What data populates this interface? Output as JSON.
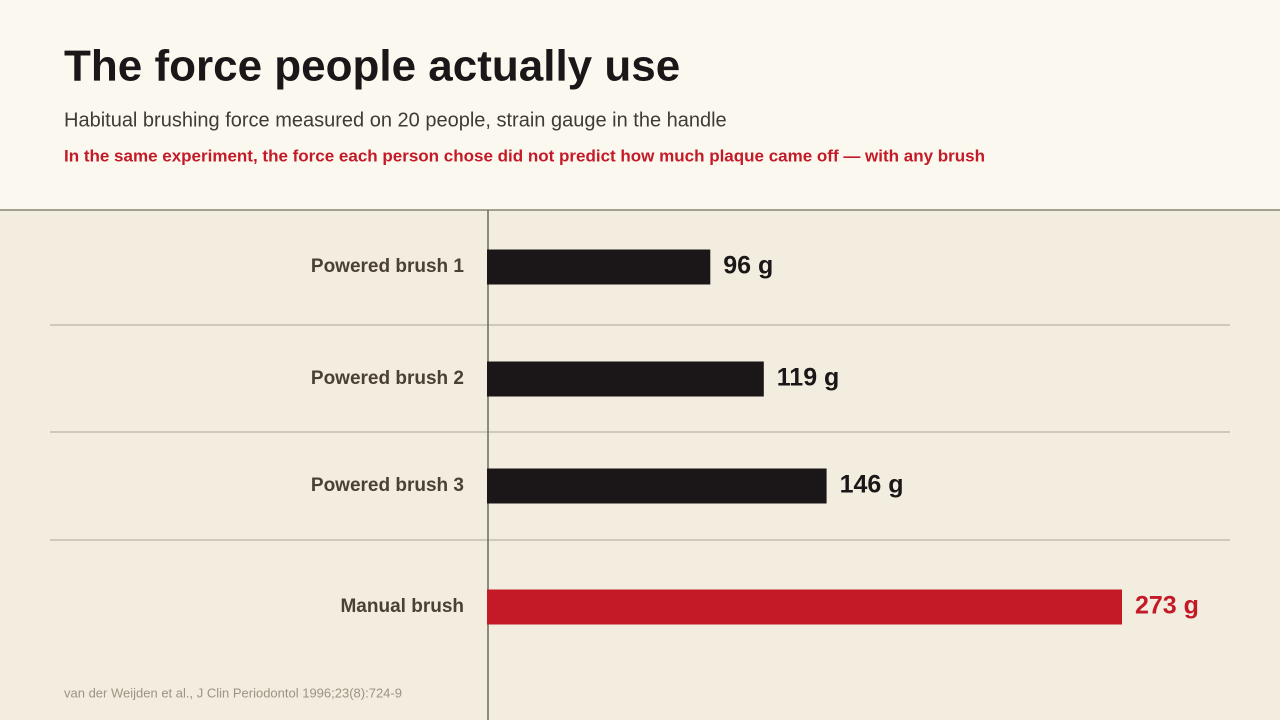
{
  "chart_data": {
    "type": "hbar",
    "title": "The force people actually use",
    "subtitle": "Habitual brushing force measured on 20 people, strain gauge in the handle",
    "annotation": "In the same experiment, the force each person chose did not predict how much plaque came off — with any brush",
    "categories": [
      "Powered brush 1",
      "Powered brush 2",
      "Powered brush 3",
      "Manual brush"
    ],
    "values": [
      96,
      119,
      146,
      273
    ],
    "value_labels": [
      "96 g",
      "119 g",
      "146 g",
      "273 g"
    ],
    "colors": [
      "#1b1719",
      "#1b1719",
      "#1b1719",
      "#c41a28"
    ],
    "source": "van der Weijden et al., J Clin Periodontol 1996;23(8):724-9"
  }
}
